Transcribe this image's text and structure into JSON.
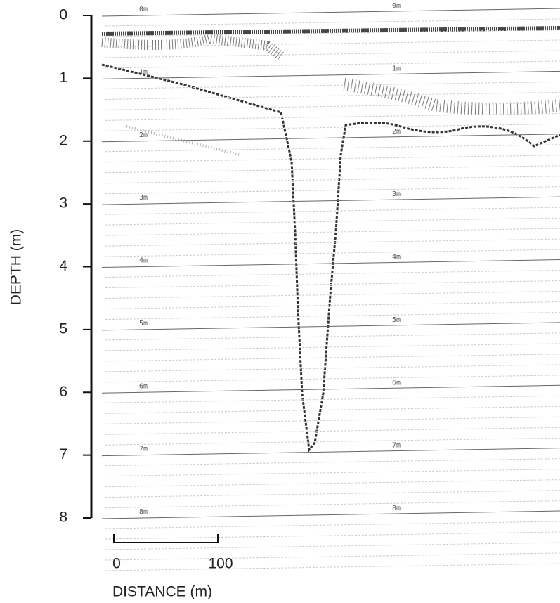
{
  "depth_axis": {
    "label": "DEPTH (m)",
    "lim": [
      0,
      8
    ],
    "ticks": [
      0,
      1,
      2,
      3,
      4,
      5,
      6,
      7,
      8
    ]
  },
  "scale_bar": {
    "label": "DISTANCE (m)",
    "lim": [
      0,
      100
    ],
    "ticks": [
      0,
      100
    ]
  },
  "depth_marks": {
    "left": [
      "0m",
      "1m",
      "2m",
      "3m",
      "4m",
      "5m",
      "6m",
      "7m",
      "8m"
    ],
    "right": [
      "0m",
      "1m",
      "2m",
      "3m",
      "4m",
      "5m",
      "6m",
      "7m",
      "8m"
    ]
  }
}
